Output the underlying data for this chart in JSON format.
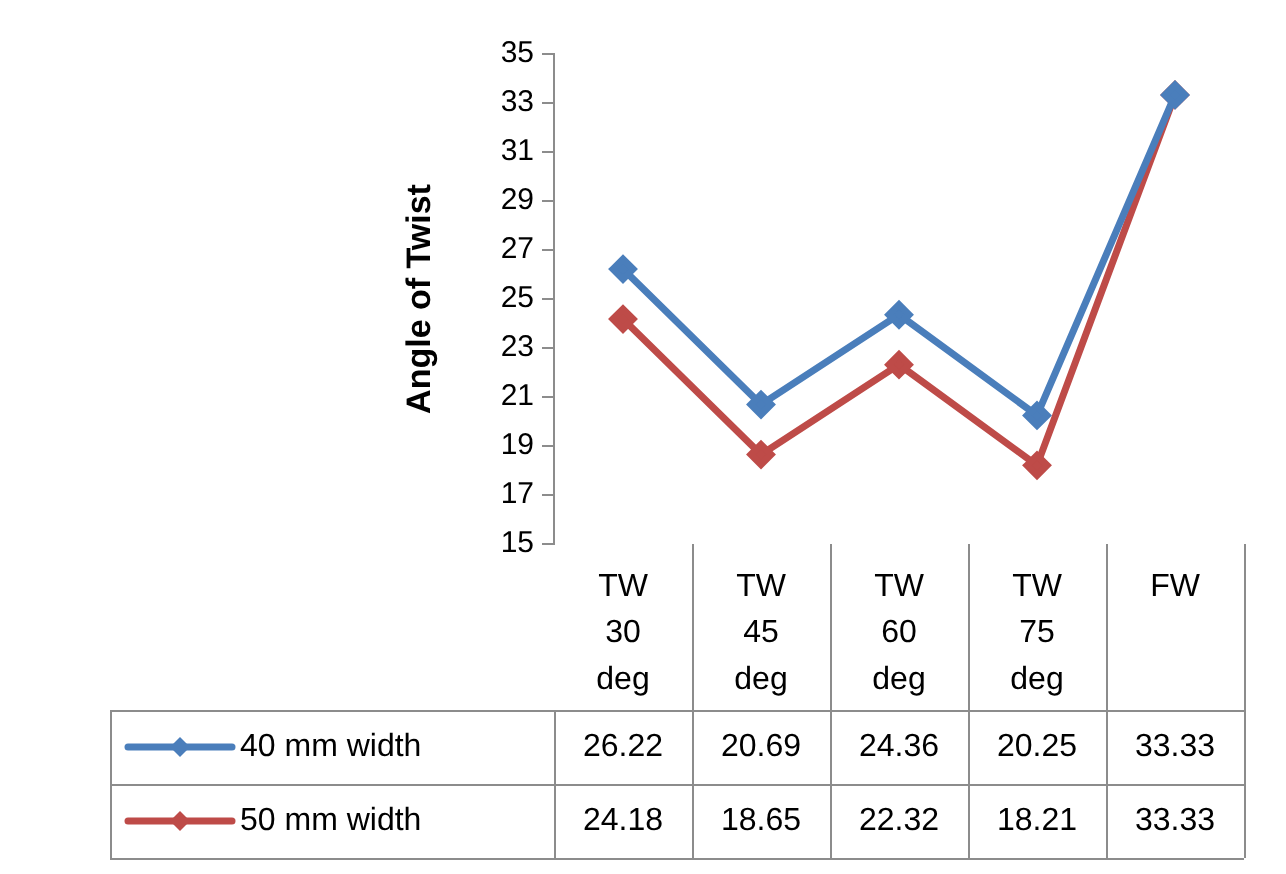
{
  "chart_data": {
    "type": "line",
    "ylabel": "Angle of Twist",
    "categories": [
      "TW 30 deg",
      "TW 45 deg",
      "TW 60 deg",
      "TW 75 deg",
      "FW"
    ],
    "series": [
      {
        "name": "40 mm width",
        "color": "#4a7ebb",
        "values": [
          26.22,
          20.69,
          24.36,
          20.25,
          33.33
        ]
      },
      {
        "name": "50 mm width",
        "color": "#be4b48",
        "values": [
          24.18,
          18.65,
          22.32,
          18.21,
          33.33
        ]
      }
    ],
    "ylim": [
      15,
      35
    ],
    "yticks": [
      15,
      17,
      19,
      21,
      23,
      25,
      27,
      29,
      31,
      33,
      35
    ],
    "grid": false,
    "legend": "bottom",
    "marker": "diamond",
    "line_style": "solid",
    "data_labels": true
  }
}
